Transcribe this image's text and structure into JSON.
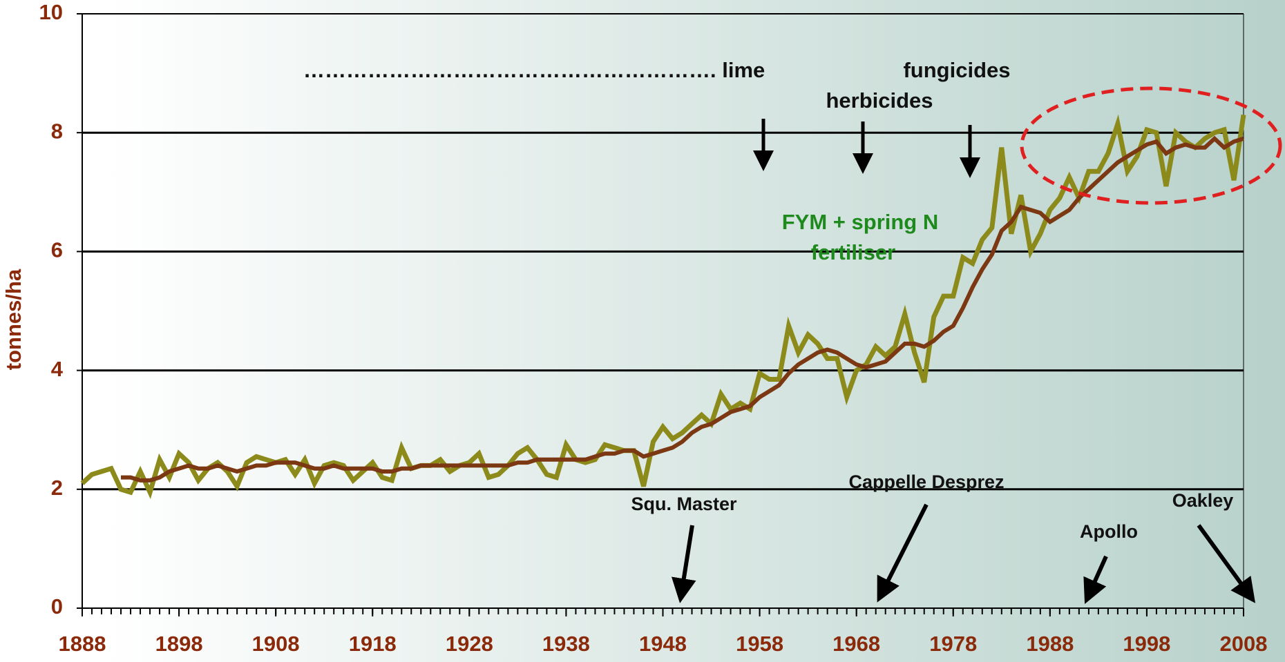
{
  "chart_data": {
    "type": "line",
    "y_label": "tonnes/ha",
    "x": [
      1888,
      1889,
      1890,
      1891,
      1892,
      1893,
      1894,
      1895,
      1896,
      1897,
      1898,
      1899,
      1900,
      1901,
      1902,
      1903,
      1904,
      1905,
      1906,
      1907,
      1908,
      1909,
      1910,
      1911,
      1912,
      1913,
      1914,
      1915,
      1916,
      1917,
      1918,
      1919,
      1920,
      1921,
      1922,
      1923,
      1924,
      1925,
      1926,
      1927,
      1928,
      1929,
      1930,
      1931,
      1932,
      1933,
      1934,
      1935,
      1936,
      1937,
      1938,
      1939,
      1940,
      1941,
      1942,
      1943,
      1944,
      1945,
      1946,
      1947,
      1948,
      1949,
      1950,
      1951,
      1952,
      1953,
      1954,
      1955,
      1956,
      1957,
      1958,
      1959,
      1960,
      1961,
      1962,
      1963,
      1964,
      1965,
      1966,
      1967,
      1968,
      1969,
      1970,
      1971,
      1972,
      1973,
      1974,
      1975,
      1976,
      1977,
      1978,
      1979,
      1980,
      1981,
      1982,
      1983,
      1984,
      1985,
      1986,
      1987,
      1988,
      1989,
      1990,
      1991,
      1992,
      1993,
      1994,
      1995,
      1996,
      1997,
      1998,
      1999,
      2000,
      2001,
      2002,
      2003,
      2004,
      2005,
      2006,
      2007,
      2008
    ],
    "series": [
      {
        "color": "#8c8a1a",
        "values": [
          2.1,
          2.25,
          2.3,
          2.35,
          2.0,
          1.95,
          2.3,
          1.95,
          2.5,
          2.2,
          2.6,
          2.45,
          2.15,
          2.35,
          2.45,
          2.3,
          2.05,
          2.45,
          2.55,
          2.5,
          2.45,
          2.5,
          2.25,
          2.5,
          2.1,
          2.4,
          2.45,
          2.4,
          2.15,
          2.3,
          2.45,
          2.2,
          2.15,
          2.7,
          2.35,
          2.4,
          2.4,
          2.5,
          2.3,
          2.4,
          2.45,
          2.6,
          2.2,
          2.25,
          2.4,
          2.6,
          2.7,
          2.5,
          2.25,
          2.2,
          2.75,
          2.5,
          2.45,
          2.5,
          2.75,
          2.7,
          2.65,
          2.65,
          2.05,
          2.8,
          3.05,
          2.85,
          2.95,
          3.1,
          3.25,
          3.1,
          3.6,
          3.35,
          3.45,
          3.35,
          3.95,
          3.85,
          3.85,
          4.75,
          4.3,
          4.6,
          4.45,
          4.2,
          4.2,
          3.55,
          4.0,
          4.1,
          4.4,
          4.25,
          4.4,
          4.95,
          4.3,
          3.8,
          4.9,
          5.25,
          5.25,
          5.9,
          5.8,
          6.2,
          6.4,
          7.75,
          6.3,
          6.95,
          6.0,
          6.3,
          6.7,
          6.9,
          7.25,
          6.9,
          7.35,
          7.35,
          7.65,
          8.15,
          7.35,
          7.6,
          8.05,
          8.0,
          7.1,
          8.0,
          7.85,
          7.75,
          7.9,
          8.0,
          8.05,
          7.2,
          8.3
        ]
      },
      {
        "color": "#7b3812",
        "values": [
          null,
          null,
          null,
          null,
          2.2,
          2.2,
          2.15,
          2.15,
          2.2,
          2.3,
          2.35,
          2.4,
          2.35,
          2.35,
          2.4,
          2.35,
          2.3,
          2.35,
          2.4,
          2.4,
          2.45,
          2.45,
          2.45,
          2.4,
          2.35,
          2.35,
          2.4,
          2.35,
          2.35,
          2.35,
          2.35,
          2.3,
          2.3,
          2.35,
          2.35,
          2.4,
          2.4,
          2.4,
          2.4,
          2.4,
          2.4,
          2.4,
          2.4,
          2.4,
          2.4,
          2.45,
          2.45,
          2.5,
          2.5,
          2.5,
          2.5,
          2.5,
          2.5,
          2.55,
          2.6,
          2.6,
          2.65,
          2.65,
          2.55,
          2.6,
          2.65,
          2.7,
          2.8,
          2.95,
          3.05,
          3.1,
          3.2,
          3.3,
          3.35,
          3.4,
          3.55,
          3.65,
          3.75,
          3.95,
          4.1,
          4.2,
          4.3,
          4.35,
          4.3,
          4.2,
          4.1,
          4.05,
          4.1,
          4.15,
          4.3,
          4.45,
          4.45,
          4.4,
          4.5,
          4.65,
          4.75,
          5.05,
          5.4,
          5.7,
          5.95,
          6.35,
          6.5,
          6.75,
          6.7,
          6.65,
          6.5,
          6.6,
          6.7,
          6.9,
          7.05,
          7.2,
          7.35,
          7.5,
          7.6,
          7.7,
          7.8,
          7.85,
          7.65,
          7.75,
          7.8,
          7.75,
          7.75,
          7.9,
          7.75,
          7.85,
          7.9
        ]
      }
    ],
    "xlim": [
      1888,
      2008
    ],
    "xticks": [
      1888,
      1898,
      1908,
      1918,
      1928,
      1938,
      1948,
      1958,
      1968,
      1978,
      1988,
      1998,
      2008
    ],
    "ylim": [
      0,
      10
    ],
    "yticks": [
      0,
      2,
      4,
      6,
      8,
      10
    ],
    "grid": true,
    "annotations": [
      "…………………………………………………. lime",
      "fungicides",
      "herbicides",
      "FYM + spring N",
      "fertiliser",
      "Squ. Master",
      "Cappelle Desprez",
      "Apollo",
      "Oakley"
    ]
  }
}
